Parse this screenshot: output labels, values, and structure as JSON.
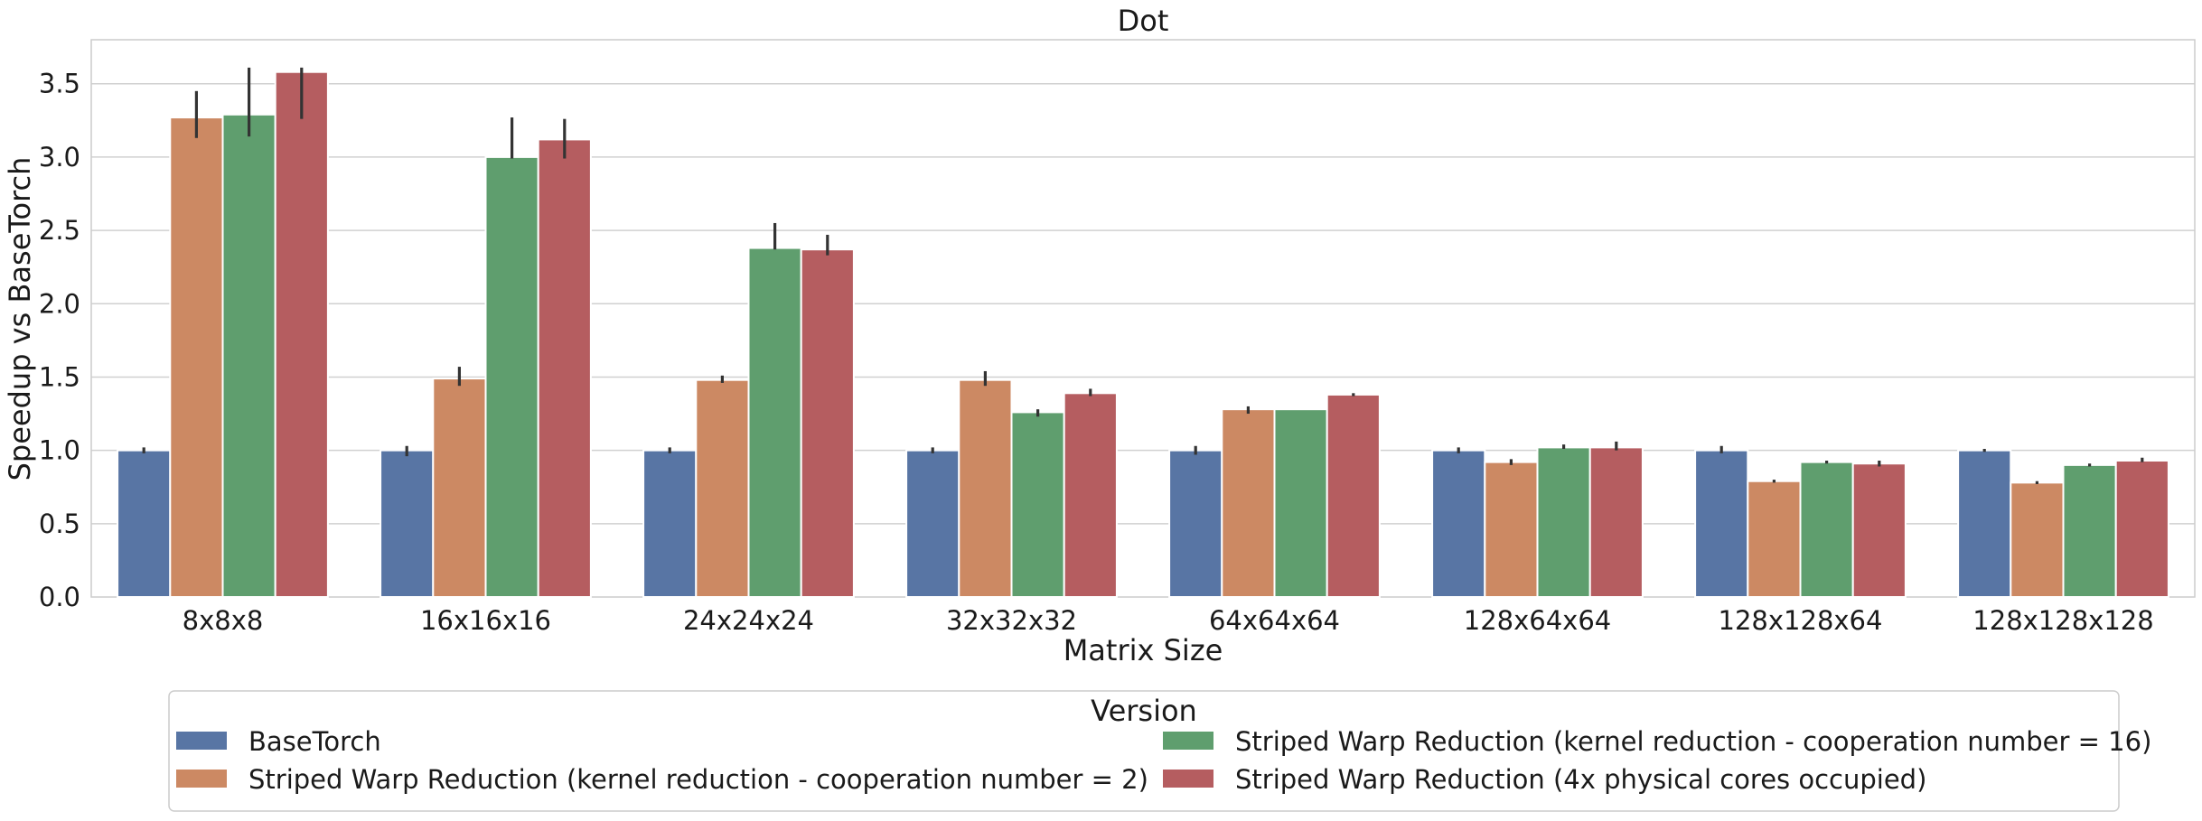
{
  "chart_data": {
    "type": "bar",
    "title": "Dot",
    "xlabel": "Matrix Size",
    "ylabel": "Speedup vs BaseTorch",
    "ylim": [
      0,
      3.8
    ],
    "yticks": [
      "0.0",
      "0.5",
      "1.0",
      "1.5",
      "2.0",
      "2.5",
      "3.0",
      "3.5"
    ],
    "grid": true,
    "legend_title": "Version",
    "legend_position": "bottom",
    "categories": [
      "8x8x8",
      "16x16x16",
      "24x24x24",
      "32x32x32",
      "64x64x64",
      "128x64x64",
      "128x128x64",
      "128x128x128"
    ],
    "series": [
      {
        "name": "BaseTorch",
        "color": "#5875a4",
        "values": [
          1.0,
          1.0,
          1.0,
          1.0,
          1.0,
          1.0,
          1.0,
          1.0
        ],
        "err_low": [
          0.98,
          0.96,
          0.98,
          0.98,
          0.97,
          0.98,
          0.98,
          0.99
        ],
        "err_high": [
          1.02,
          1.03,
          1.02,
          1.02,
          1.03,
          1.02,
          1.03,
          1.01
        ]
      },
      {
        "name": "Striped Warp Reduction (kernel reduction - cooperation number = 2)",
        "color": "#cc8963",
        "values": [
          3.27,
          1.49,
          1.48,
          1.48,
          1.28,
          0.92,
          0.79,
          0.78
        ],
        "err_low": [
          3.13,
          1.44,
          1.46,
          1.44,
          1.25,
          0.9,
          0.78,
          0.77
        ],
        "err_high": [
          3.45,
          1.57,
          1.51,
          1.54,
          1.3,
          0.94,
          0.8,
          0.79
        ]
      },
      {
        "name": "Striped Warp Reduction (kernel reduction - cooperation number = 16)",
        "color": "#5f9e6e",
        "values": [
          3.29,
          3.0,
          2.38,
          1.26,
          1.28,
          1.02,
          0.92,
          0.9
        ],
        "err_low": [
          3.14,
          2.99,
          2.37,
          1.23,
          1.28,
          1.01,
          0.91,
          0.89
        ],
        "err_high": [
          3.61,
          3.27,
          2.55,
          1.28,
          1.28,
          1.04,
          0.93,
          0.91
        ]
      },
      {
        "name": "Striped Warp Reduction (4x physical cores occupied)",
        "color": "#b55d60",
        "values": [
          3.58,
          3.12,
          2.37,
          1.39,
          1.38,
          1.02,
          0.91,
          0.93
        ],
        "err_low": [
          3.26,
          2.99,
          2.33,
          1.37,
          1.37,
          1.0,
          0.89,
          0.92
        ],
        "err_high": [
          3.61,
          3.26,
          2.47,
          1.42,
          1.39,
          1.06,
          0.93,
          0.95
        ]
      }
    ]
  }
}
